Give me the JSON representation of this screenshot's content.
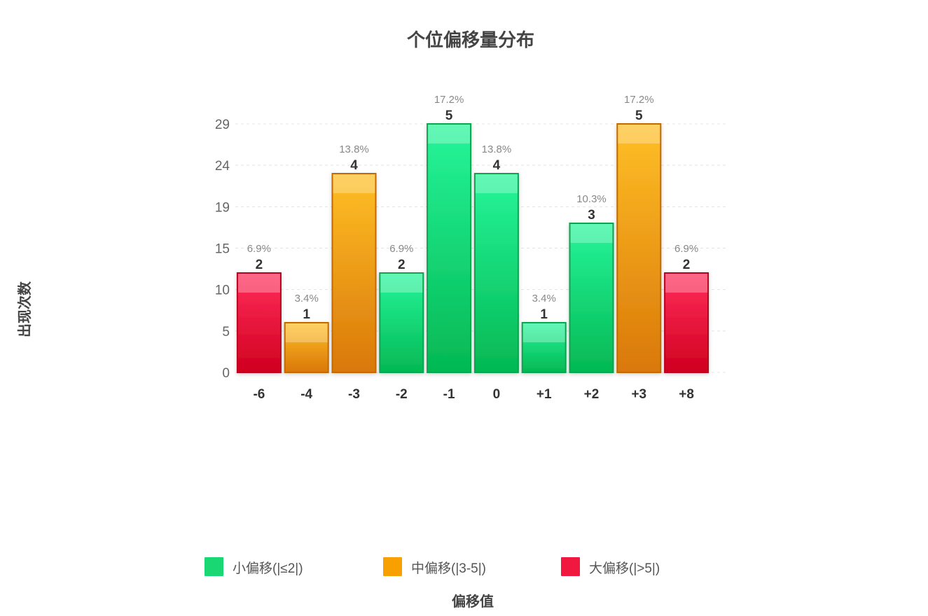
{
  "chart_data": {
    "type": "bar",
    "title": "个位偏移量分布",
    "xlabel": "偏移值",
    "ylabel": "出现次数",
    "categories": [
      "-6",
      "-4",
      "-3",
      "-2",
      "-1",
      "0",
      "+1",
      "+2",
      "+3",
      "+8"
    ],
    "values": [
      2,
      1,
      4,
      2,
      5,
      4,
      1,
      3,
      5,
      2
    ],
    "percent_labels": [
      "6.9%",
      "3.4%",
      "13.8%",
      "6.9%",
      "17.2%",
      "13.8%",
      "3.4%",
      "10.3%",
      "17.2%",
      "6.9%"
    ],
    "groups": [
      "large",
      "medium",
      "medium",
      "small",
      "small",
      "small",
      "small",
      "small",
      "medium",
      "large"
    ],
    "y_tick_labels": [
      "0",
      "5",
      "10",
      "15",
      "19",
      "24",
      "29"
    ],
    "ylim": [
      0,
      5
    ],
    "grid": true,
    "legend_position": "bottom",
    "legend": [
      {
        "key": "small",
        "label": "小偏移(|≤2|)",
        "color": "#19d873"
      },
      {
        "key": "medium",
        "label": "中偏移(|3-5|)",
        "color": "#f7a000"
      },
      {
        "key": "large",
        "label": "大偏移(|>5|)",
        "color": "#f0183f"
      }
    ]
  }
}
